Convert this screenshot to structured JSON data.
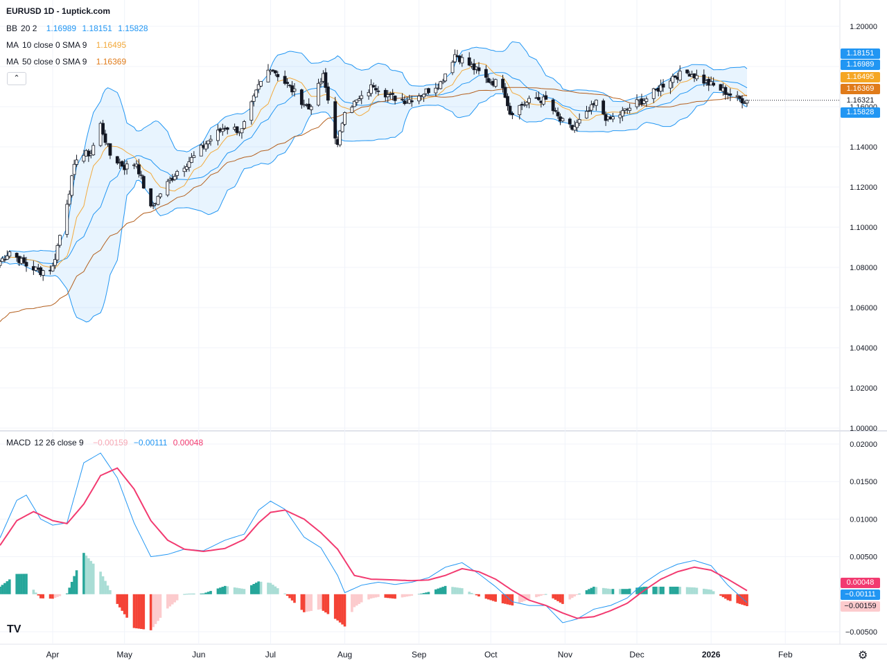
{
  "header": {
    "title": "EURUSD 1D - 1uptick.com",
    "bb": {
      "label": "BB",
      "params": "20 2",
      "v1": "1.16989",
      "v2": "1.18151",
      "v3": "1.15828"
    },
    "ma10": {
      "label": "MA",
      "params": "10 close 0 SMA 9",
      "value": "1.16495"
    },
    "ma50": {
      "label": "MA",
      "params": "50 close 0 SMA 9",
      "value": "1.16369"
    },
    "collapse_icon": "chevron-up-icon"
  },
  "macd_legend": {
    "label": "MACD",
    "params": "12 26 close 9",
    "v1": "−0.00159",
    "v2": "−0.00111",
    "v3": "0.00048"
  },
  "price_axis": {
    "ticks": [
      "1.20000",
      "1.18000",
      "1.16000",
      "1.14000",
      "1.12000",
      "1.10000",
      "1.08000",
      "1.06000",
      "1.04000",
      "1.02000",
      "1.00000"
    ]
  },
  "macd_axis": {
    "ticks": [
      "0.02000",
      "0.01500",
      "0.01000",
      "0.00500",
      "−0.00500"
    ]
  },
  "time_axis": {
    "labels": [
      "Apr",
      "May",
      "Jun",
      "Jul",
      "Aug",
      "Sep",
      "Oct",
      "Nov",
      "Dec",
      "2026",
      "Feb"
    ]
  },
  "price_tags": {
    "bb_upper": "1.18151",
    "bb_mid": "1.16989",
    "ma10": "1.16495",
    "ma50": "1.16369",
    "last": "1.16321",
    "bb_lower": "1.15828"
  },
  "macd_tags": {
    "signal": "0.00048",
    "macd": "−0.00111",
    "hist": "−0.00159"
  },
  "colors": {
    "up": "#ffffff",
    "down": "#131722",
    "wick": "#131722",
    "bb_line": "#2196f3",
    "bb_fill": "rgba(33,150,243,0.10)",
    "ma10": "#f2a93b",
    "ma50": "#b35e1c",
    "macd": "#2196f3",
    "signal": "#f23a70",
    "hist_pos_strong": "#26a69a",
    "hist_pos_weak": "#a9ddd5",
    "hist_neg_strong": "#f44336",
    "hist_neg_weak": "#fccbcd",
    "tag_ma10": "#f5a623",
    "tag_ma50": "#e07b1a"
  },
  "logo_text": "TV",
  "settings_icon": "gear-icon",
  "chart_data": [
    {
      "type": "candlestick",
      "title": "EURUSD 1D - 1uptick.com",
      "x_range": [
        "2025-03-10",
        "2026-01-16"
      ],
      "ylim": [
        1.0,
        1.2
      ],
      "grid": true,
      "close_path": [
        [
          "2025-03-10",
          1.083
        ],
        [
          "2025-03-14",
          1.088
        ],
        [
          "2025-03-21",
          1.081
        ],
        [
          "2025-03-27",
          1.078
        ],
        [
          "2025-04-01",
          1.08
        ],
        [
          "2025-04-04",
          1.096
        ],
        [
          "2025-04-11",
          1.135
        ],
        [
          "2025-04-17",
          1.137
        ],
        [
          "2025-04-21",
          1.151
        ],
        [
          "2025-04-25",
          1.136
        ],
        [
          "2025-05-01",
          1.13
        ],
        [
          "2025-05-06",
          1.132
        ],
        [
          "2025-05-12",
          1.109
        ],
        [
          "2025-05-16",
          1.117
        ],
        [
          "2025-05-23",
          1.128
        ],
        [
          "2025-05-30",
          1.135
        ],
        [
          "2025-06-05",
          1.143
        ],
        [
          "2025-06-12",
          1.15
        ],
        [
          "2025-06-19",
          1.148
        ],
        [
          "2025-06-26",
          1.17
        ],
        [
          "2025-07-01",
          1.18
        ],
        [
          "2025-07-07",
          1.172
        ],
        [
          "2025-07-11",
          1.167
        ],
        [
          "2025-07-17",
          1.159
        ],
        [
          "2025-07-23",
          1.175
        ],
        [
          "2025-07-29",
          1.14
        ],
        [
          "2025-08-01",
          1.159
        ],
        [
          "2025-08-08",
          1.164
        ],
        [
          "2025-08-13",
          1.171
        ],
        [
          "2025-08-20",
          1.165
        ],
        [
          "2025-08-27",
          1.163
        ],
        [
          "2025-09-03",
          1.167
        ],
        [
          "2025-09-10",
          1.172
        ],
        [
          "2025-09-16",
          1.186
        ],
        [
          "2025-09-23",
          1.18
        ],
        [
          "2025-09-30",
          1.173
        ],
        [
          "2025-10-06",
          1.171
        ],
        [
          "2025-10-09",
          1.157
        ],
        [
          "2025-10-14",
          1.161
        ],
        [
          "2025-10-20",
          1.164
        ],
        [
          "2025-10-24",
          1.163
        ],
        [
          "2025-10-30",
          1.153
        ],
        [
          "2025-11-04",
          1.149
        ],
        [
          "2025-11-10",
          1.156
        ],
        [
          "2025-11-14",
          1.162
        ],
        [
          "2025-11-19",
          1.153
        ],
        [
          "2025-11-25",
          1.157
        ],
        [
          "2025-12-01",
          1.162
        ],
        [
          "2025-12-05",
          1.164
        ],
        [
          "2025-12-10",
          1.169
        ],
        [
          "2025-12-16",
          1.175
        ],
        [
          "2025-12-23",
          1.177
        ],
        [
          "2025-12-30",
          1.172
        ],
        [
          "2026-01-06",
          1.168
        ],
        [
          "2026-01-12",
          1.164
        ],
        [
          "2026-01-16",
          1.163
        ]
      ],
      "last_close": 1.16321,
      "indicators": {
        "bb": {
          "period": 20,
          "mult": 2,
          "middle": 1.16989,
          "upper": 1.18151,
          "lower": 1.15828
        },
        "ma10": {
          "value": 1.16495
        },
        "ma50": {
          "value": 1.16369
        }
      }
    },
    {
      "type": "line+bar",
      "title": "MACD 12 26 close 9",
      "ylim": [
        -0.006,
        0.021
      ],
      "macd_path": [
        [
          "2025-03-10",
          0.0075
        ],
        [
          "2025-03-17",
          0.0125
        ],
        [
          "2025-03-21",
          0.0132
        ],
        [
          "2025-03-27",
          0.01
        ],
        [
          "2025-04-01",
          0.0092
        ],
        [
          "2025-04-07",
          0.0095
        ],
        [
          "2025-04-14",
          0.0175
        ],
        [
          "2025-04-21",
          0.0188
        ],
        [
          "2025-04-28",
          0.0155
        ],
        [
          "2025-05-05",
          0.0095
        ],
        [
          "2025-05-12",
          0.005
        ],
        [
          "2025-05-19",
          0.0053
        ],
        [
          "2025-05-26",
          0.006
        ],
        [
          "2025-06-03",
          0.0058
        ],
        [
          "2025-06-12",
          0.0072
        ],
        [
          "2025-06-20",
          0.008
        ],
        [
          "2025-06-26",
          0.0112
        ],
        [
          "2025-07-01",
          0.0124
        ],
        [
          "2025-07-07",
          0.0113
        ],
        [
          "2025-07-15",
          0.0076
        ],
        [
          "2025-07-22",
          0.0062
        ],
        [
          "2025-07-29",
          0.0025
        ],
        [
          "2025-08-01",
          0.0002
        ],
        [
          "2025-08-08",
          0.0012
        ],
        [
          "2025-08-15",
          0.0016
        ],
        [
          "2025-08-22",
          0.0013
        ],
        [
          "2025-08-29",
          0.0016
        ],
        [
          "2025-09-05",
          0.0022
        ],
        [
          "2025-09-12",
          0.0036
        ],
        [
          "2025-09-19",
          0.0042
        ],
        [
          "2025-09-26",
          0.0027
        ],
        [
          "2025-10-03",
          0.001
        ],
        [
          "2025-10-10",
          -0.001
        ],
        [
          "2025-10-17",
          -0.0015
        ],
        [
          "2025-10-24",
          -0.0015
        ],
        [
          "2025-10-31",
          -0.0038
        ],
        [
          "2025-11-06",
          -0.0033
        ],
        [
          "2025-11-13",
          -0.002
        ],
        [
          "2025-11-20",
          -0.0015
        ],
        [
          "2025-11-27",
          -0.0005
        ],
        [
          "2025-12-04",
          0.0015
        ],
        [
          "2025-12-11",
          0.003
        ],
        [
          "2025-12-18",
          0.004
        ],
        [
          "2025-12-25",
          0.0045
        ],
        [
          "2026-01-01",
          0.0038
        ],
        [
          "2026-01-08",
          0.0012
        ],
        [
          "2026-01-16",
          -0.00111
        ]
      ],
      "signal_path": [
        [
          "2025-03-10",
          0.0065
        ],
        [
          "2025-03-17",
          0.0098
        ],
        [
          "2025-03-24",
          0.011
        ],
        [
          "2025-04-01",
          0.0098
        ],
        [
          "2025-04-07",
          0.0094
        ],
        [
          "2025-04-14",
          0.012
        ],
        [
          "2025-04-21",
          0.0158
        ],
        [
          "2025-04-28",
          0.0168
        ],
        [
          "2025-05-05",
          0.014
        ],
        [
          "2025-05-12",
          0.0098
        ],
        [
          "2025-05-19",
          0.0072
        ],
        [
          "2025-05-26",
          0.006
        ],
        [
          "2025-06-03",
          0.0057
        ],
        [
          "2025-06-12",
          0.0061
        ],
        [
          "2025-06-20",
          0.0073
        ],
        [
          "2025-06-26",
          0.0095
        ],
        [
          "2025-07-01",
          0.0109
        ],
        [
          "2025-07-07",
          0.0112
        ],
        [
          "2025-07-15",
          0.01
        ],
        [
          "2025-07-22",
          0.0082
        ],
        [
          "2025-07-29",
          0.006
        ],
        [
          "2025-08-05",
          0.0025
        ],
        [
          "2025-08-12",
          0.002
        ],
        [
          "2025-08-22",
          0.0019
        ],
        [
          "2025-08-29",
          0.0018
        ],
        [
          "2025-09-05",
          0.0019
        ],
        [
          "2025-09-12",
          0.0025
        ],
        [
          "2025-09-19",
          0.0034
        ],
        [
          "2025-09-26",
          0.003
        ],
        [
          "2025-10-03",
          0.002
        ],
        [
          "2025-10-10",
          0.0005
        ],
        [
          "2025-10-17",
          -0.0008
        ],
        [
          "2025-10-24",
          -0.0015
        ],
        [
          "2025-10-31",
          -0.0025
        ],
        [
          "2025-11-06",
          -0.0032
        ],
        [
          "2025-11-13",
          -0.003
        ],
        [
          "2025-11-20",
          -0.0022
        ],
        [
          "2025-11-27",
          -0.0012
        ],
        [
          "2025-12-04",
          0.0005
        ],
        [
          "2025-12-11",
          0.002
        ],
        [
          "2025-12-18",
          0.003
        ],
        [
          "2025-12-25",
          0.0036
        ],
        [
          "2026-01-01",
          0.0032
        ],
        [
          "2026-01-08",
          0.002
        ],
        [
          "2026-01-16",
          0.00048
        ]
      ],
      "last_histogram": -0.00159
    }
  ]
}
